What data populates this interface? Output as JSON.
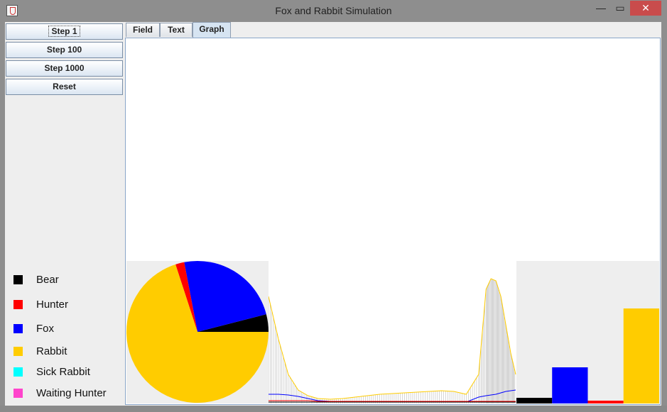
{
  "window": {
    "title": "Fox and Rabbit Simulation",
    "min_glyph": "—",
    "max_glyph": "▭",
    "close_glyph": "✕"
  },
  "buttons": {
    "step1": "Step 1",
    "step100": "Step 100",
    "step1000": "Step 1000",
    "reset": "Reset"
  },
  "tabs": [
    {
      "label": "Field"
    },
    {
      "label": "Text"
    },
    {
      "label": "Graph",
      "selected": true
    }
  ],
  "legend": [
    {
      "label": "Bear",
      "color": "#000000"
    },
    {
      "label": "Hunter",
      "color": "#ff0000"
    },
    {
      "label": "Fox",
      "color": "#0000ff"
    },
    {
      "label": "Rabbit",
      "color": "#ffcc00"
    },
    {
      "label": "Sick Rabbit",
      "color": "#00ffff"
    },
    {
      "label": "Waiting Hunter",
      "color": "#ff44cc"
    }
  ],
  "chart_data": [
    {
      "type": "pie",
      "labels": [
        "Bear",
        "Fox",
        "Hunter",
        "Rabbit"
      ],
      "values": [
        4,
        24,
        2,
        70
      ],
      "colors": [
        "#000000",
        "#0000ff",
        "#ff0000",
        "#ffcc00"
      ]
    },
    {
      "type": "line",
      "x": [
        0,
        4,
        8,
        12,
        16,
        20,
        25,
        30,
        35,
        40,
        45,
        50,
        55,
        60,
        65,
        70,
        75,
        80,
        85,
        88,
        90,
        92,
        94,
        96,
        98,
        100
      ],
      "series": [
        {
          "color": "#ffcc00",
          "values": [
            150,
            90,
            40,
            18,
            10,
            6,
            5,
            6,
            8,
            10,
            12,
            13,
            14,
            15,
            16,
            17,
            16,
            12,
            40,
            160,
            175,
            172,
            150,
            110,
            70,
            40
          ]
        },
        {
          "color": "#0000ff",
          "values": [
            12,
            12,
            11,
            9,
            6,
            3,
            2,
            1,
            1,
            1,
            1,
            1,
            1,
            1,
            1,
            1,
            1,
            1,
            8,
            10,
            11,
            12,
            14,
            16,
            17,
            18
          ]
        },
        {
          "color": "#ff0000",
          "values": [
            3,
            3,
            3,
            3,
            3,
            2,
            2,
            2,
            2,
            2,
            2,
            2,
            2,
            2,
            2,
            2,
            2,
            2,
            2,
            2,
            2,
            2,
            2,
            2,
            2,
            2
          ]
        },
        {
          "color": "#000000",
          "values": [
            1,
            1,
            1,
            1,
            1,
            1,
            1,
            1,
            1,
            1,
            1,
            1,
            1,
            1,
            1,
            1,
            1,
            1,
            1,
            1,
            1,
            1,
            1,
            1,
            1,
            1
          ]
        }
      ],
      "ylim": [
        0,
        200
      ]
    },
    {
      "type": "bar",
      "categories": [
        "Bear",
        "Fox",
        "Hunter",
        "Rabbit"
      ],
      "values": [
        8,
        51,
        4,
        134
      ],
      "colors": [
        "#000000",
        "#0000ff",
        "#ff0000",
        "#ffcc00"
      ],
      "ylim": [
        0,
        201
      ]
    }
  ]
}
